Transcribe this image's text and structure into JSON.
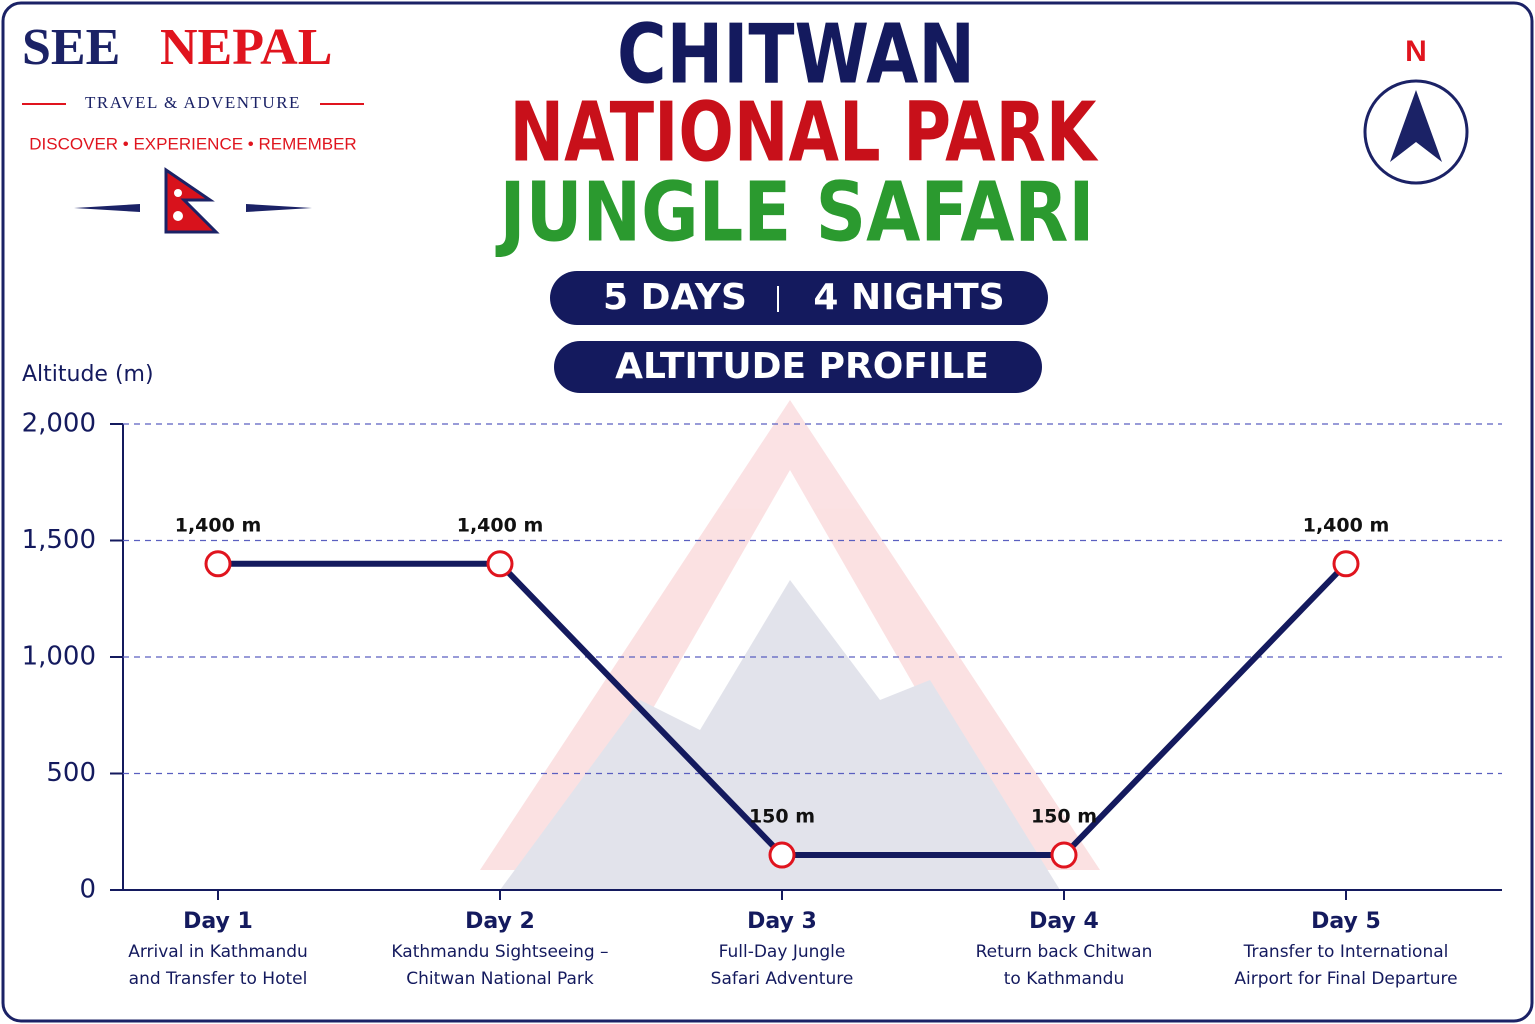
{
  "brand": {
    "name_left": "SEE",
    "name_right": "NEPAL",
    "tagline": "TRAVEL & ADVENTURE",
    "motto": "DISCOVER • EXPERIENCE • REMEMBER"
  },
  "header": {
    "title_line1": "CHITWAN",
    "title_line2": "NATIONAL PARK",
    "title_line3": "JUNGLE SAFARI",
    "days": "5 DAYS",
    "nights": "4 NIGHTS",
    "subtitle": "ALTITUDE PROFILE"
  },
  "compass": {
    "label": "N"
  },
  "chart_data": {
    "type": "line",
    "y_label": "Altitude (m)",
    "categories": [
      "Day 1",
      "Day 2",
      "Day 3",
      "Day 4",
      "Day 5"
    ],
    "descriptions": [
      [
        "Arrival in Kathmandu",
        "and Transfer to Hotel"
      ],
      [
        "Kathmandu Sightseeing –",
        "Chitwan National Park"
      ],
      [
        "Full-Day Jungle",
        "Safari Adventure"
      ],
      [
        "Return back Chitwan",
        "to Kathmandu"
      ],
      [
        "Transfer to International",
        "Airport for Final Departure"
      ]
    ],
    "values": [
      1400,
      1400,
      150,
      150,
      1400
    ],
    "value_labels": [
      "1,400 m",
      "1,400 m",
      "150 m",
      "150 m",
      "1,400 m"
    ],
    "color": "#141a5e",
    "marker_color": "#e0141e",
    "ylim": [
      0,
      2000
    ],
    "yticks": [
      0,
      500,
      {
        "value": 1000,
        "label": "1,000"
      },
      {
        "value": 1500,
        "label": "1,500"
      },
      {
        "value": 2000,
        "label": "2,000"
      }
    ],
    "grid": true
  }
}
